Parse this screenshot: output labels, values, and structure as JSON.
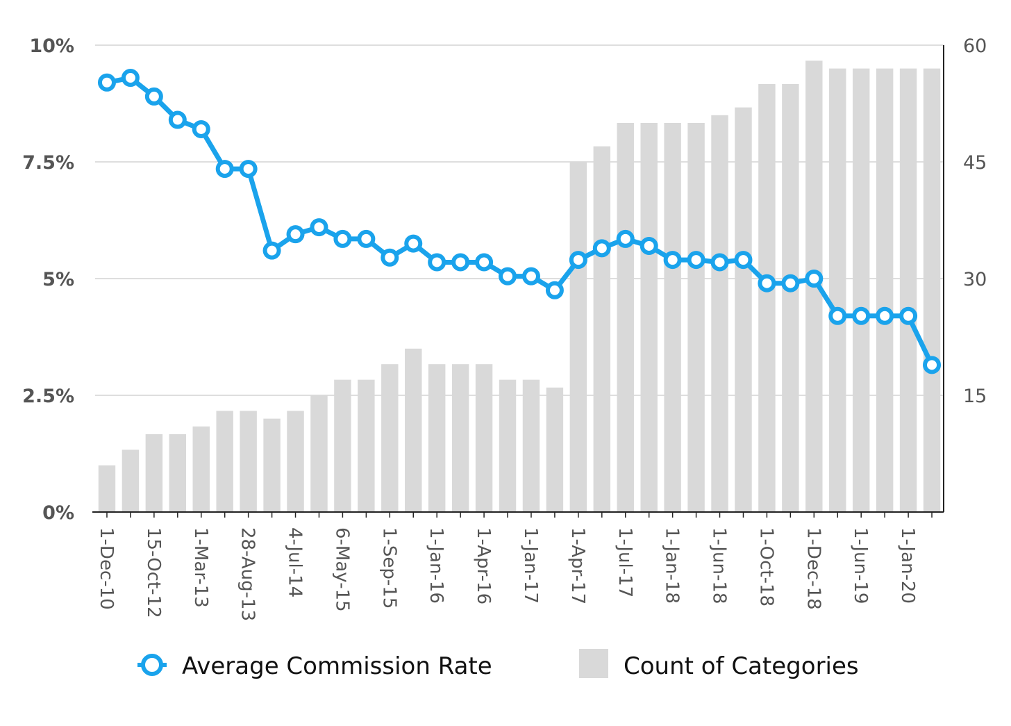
{
  "chart_data": {
    "type": "bar",
    "title": "",
    "xlabel": "",
    "ylabel": "",
    "y2label": "",
    "categories": [
      "1-Dec-10",
      "",
      "15-Oct-12",
      "",
      "1-Mar-13",
      "",
      "28-Aug-13",
      "",
      "4-Jul-14",
      "",
      "6-May-15",
      "",
      "1-Sep-15",
      "",
      "1-Jan-16",
      "",
      "1-Apr-16",
      "",
      "1-Jan-17",
      "",
      "1-Apr-17",
      "",
      "1-Jul-17",
      "",
      "1-Jan-18",
      "",
      "1-Jun-18",
      "",
      "1-Oct-18",
      "",
      "1-Dec-18",
      "",
      "1-Jun-19",
      "",
      "1-Jan-20",
      ""
    ],
    "ylim": [
      0,
      10
    ],
    "y2lim": [
      0,
      60
    ],
    "yticks": [
      0,
      2.5,
      5,
      7.5,
      10
    ],
    "ytick_labels": [
      "0%",
      "2.5%",
      "5%",
      "7.5%",
      "10%"
    ],
    "y2ticks": [
      15,
      30,
      45,
      60
    ],
    "y2tick_labels": [
      "15",
      "30",
      "45",
      "60"
    ],
    "grid": true,
    "legend_position": "bottom",
    "series": [
      {
        "name": "Average Commission Rate",
        "type": "line",
        "axis": "left",
        "unit": "%",
        "color": "#1AA3EC",
        "values": [
          9.2,
          9.3,
          8.9,
          8.4,
          8.2,
          7.35,
          7.35,
          5.6,
          5.95,
          6.1,
          5.85,
          5.85,
          5.45,
          5.75,
          5.35,
          5.35,
          5.35,
          5.05,
          5.05,
          4.75,
          5.4,
          5.65,
          5.85,
          5.7,
          5.4,
          5.4,
          5.35,
          5.4,
          4.9,
          4.9,
          5.0,
          4.2,
          4.2,
          4.2,
          4.2,
          3.15
        ]
      },
      {
        "name": "Count of Categories",
        "type": "bar",
        "axis": "right",
        "color": "#D9D9D9",
        "values": [
          6,
          8,
          10,
          10,
          11,
          13,
          13,
          12,
          13,
          15,
          17,
          17,
          19,
          21,
          19,
          19,
          19,
          17,
          17,
          16,
          45,
          47,
          50,
          50,
          50,
          50,
          51,
          52,
          55,
          55,
          58,
          57,
          57,
          57,
          57,
          57
        ]
      }
    ]
  }
}
